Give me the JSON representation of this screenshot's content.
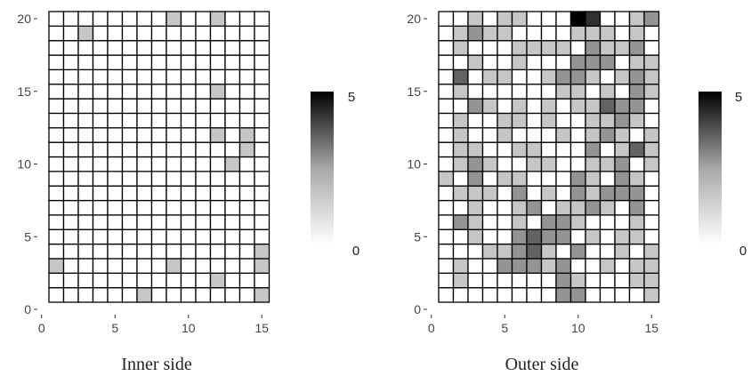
{
  "chart_data": [
    {
      "type": "heatmap",
      "title": "Inner side",
      "x": [
        1,
        2,
        3,
        4,
        5,
        6,
        7,
        8,
        9,
        10,
        11,
        12,
        13,
        14,
        15
      ],
      "y": [
        1,
        2,
        3,
        4,
        5,
        6,
        7,
        8,
        9,
        10,
        11,
        12,
        13,
        14,
        15,
        16,
        17,
        18,
        19,
        20
      ],
      "xlim": [
        0,
        15.5
      ],
      "ylim": [
        0,
        20.5
      ],
      "x_ticks": [
        "0",
        "5",
        "10",
        "15"
      ],
      "y_ticks": [
        "0",
        "5",
        "10",
        "15",
        "20"
      ],
      "values": [
        [
          0,
          0,
          0,
          0,
          0,
          0,
          1,
          0,
          0,
          0,
          0,
          0,
          0,
          0,
          1
        ],
        [
          0,
          0,
          0,
          0,
          0,
          0,
          0,
          0,
          0,
          0,
          0,
          1,
          0,
          0,
          0
        ],
        [
          1,
          0,
          0,
          0,
          0,
          0,
          0,
          0,
          1,
          0,
          0,
          0,
          0,
          0,
          1
        ],
        [
          0,
          0,
          0,
          0,
          0,
          0,
          0,
          0,
          0,
          0,
          0,
          0,
          0,
          0,
          1
        ],
        [
          0,
          0,
          0,
          0,
          0,
          0,
          0,
          0,
          0,
          0,
          0,
          0,
          0,
          0,
          0
        ],
        [
          0,
          0,
          0,
          0,
          0,
          0,
          0,
          0,
          0,
          0,
          0,
          0,
          0,
          0,
          0
        ],
        [
          0,
          0,
          0,
          0,
          0,
          0,
          0,
          0,
          0,
          0,
          0,
          0,
          0,
          0,
          0
        ],
        [
          0,
          0,
          0,
          0,
          0,
          0,
          0,
          0,
          0,
          0,
          0,
          0,
          0,
          0,
          0
        ],
        [
          0,
          0,
          0,
          0,
          0,
          0,
          0,
          0,
          0,
          0,
          0,
          0,
          0,
          0,
          0
        ],
        [
          0,
          0,
          0,
          0,
          0,
          0,
          0,
          0,
          0,
          0,
          0,
          0,
          1,
          0,
          0
        ],
        [
          0,
          0,
          0,
          0,
          0,
          0,
          0,
          0,
          0,
          0,
          0,
          0,
          0,
          1,
          0
        ],
        [
          0,
          0,
          0,
          0,
          0,
          0,
          0,
          0,
          0,
          0,
          0,
          1,
          0,
          1,
          0
        ],
        [
          0,
          0,
          0,
          0,
          0,
          0,
          0,
          0,
          0,
          0,
          0,
          0,
          0,
          0,
          0
        ],
        [
          0,
          0,
          0,
          0,
          0,
          0,
          0,
          0,
          0,
          0,
          0,
          0,
          0,
          0,
          0
        ],
        [
          0,
          0,
          0,
          0,
          0,
          0,
          0,
          0,
          0,
          0,
          0,
          1,
          0,
          0,
          0
        ],
        [
          0,
          0,
          0,
          0,
          0,
          0,
          0,
          0,
          0,
          0,
          0,
          0,
          0,
          0,
          0
        ],
        [
          0,
          0,
          0,
          0,
          0,
          0,
          0,
          0,
          0,
          0,
          0,
          0,
          0,
          0,
          0
        ],
        [
          0,
          0,
          0,
          0,
          0,
          0,
          0,
          0,
          0,
          0,
          0,
          0,
          0,
          0,
          0
        ],
        [
          0,
          0,
          1,
          0,
          0,
          0,
          0,
          0,
          0,
          0,
          0,
          0,
          0,
          0,
          0
        ],
        [
          0,
          0,
          0,
          0,
          0,
          0,
          0,
          0,
          1,
          0,
          0,
          1,
          0,
          0,
          0
        ]
      ],
      "legend": {
        "min_label": "0",
        "max_label": "5",
        "min": 0,
        "max": 5
      }
    },
    {
      "type": "heatmap",
      "title": "Outer side",
      "x": [
        1,
        2,
        3,
        4,
        5,
        6,
        7,
        8,
        9,
        10,
        11,
        12,
        13,
        14,
        15
      ],
      "y": [
        1,
        2,
        3,
        4,
        5,
        6,
        7,
        8,
        9,
        10,
        11,
        12,
        13,
        14,
        15,
        16,
        17,
        18,
        19,
        20
      ],
      "xlim": [
        0,
        15.5
      ],
      "ylim": [
        0,
        20.5
      ],
      "x_ticks": [
        "0",
        "5",
        "10",
        "15"
      ],
      "y_ticks": [
        "0",
        "5",
        "10",
        "15",
        "20"
      ],
      "values": [
        [
          0,
          0,
          0,
          0,
          0,
          0,
          0,
          0,
          2,
          2,
          0,
          0,
          0,
          0,
          1
        ],
        [
          0,
          1,
          0,
          0,
          0,
          0,
          0,
          0,
          2,
          1,
          0,
          0,
          0,
          1,
          1
        ],
        [
          0,
          1,
          0,
          0,
          2,
          2,
          2,
          1,
          2,
          0,
          0,
          1,
          0,
          1,
          1
        ],
        [
          0,
          0,
          0,
          1,
          1,
          2,
          3,
          1,
          0,
          2,
          0,
          0,
          1,
          0,
          1
        ],
        [
          0,
          0,
          1,
          0,
          0,
          2,
          3,
          2,
          2,
          0,
          1,
          0,
          1,
          1,
          0
        ],
        [
          0,
          2,
          1,
          0,
          0,
          1,
          0,
          2,
          2,
          1,
          0,
          0,
          0,
          1,
          0
        ],
        [
          0,
          0,
          1,
          0,
          0,
          1,
          2,
          0,
          1,
          1,
          2,
          1,
          0,
          2,
          0
        ],
        [
          0,
          1,
          1,
          1,
          0,
          2,
          0,
          1,
          0,
          2,
          1,
          2,
          2,
          2,
          0
        ],
        [
          1,
          0,
          2,
          0,
          1,
          1,
          0,
          0,
          0,
          2,
          1,
          0,
          2,
          1,
          0
        ],
        [
          0,
          1,
          2,
          1,
          0,
          0,
          1,
          1,
          0,
          0,
          1,
          1,
          2,
          0,
          1
        ],
        [
          0,
          1,
          1,
          0,
          0,
          1,
          1,
          0,
          0,
          0,
          2,
          0,
          1,
          3,
          1
        ],
        [
          0,
          1,
          0,
          0,
          1,
          0,
          0,
          0,
          1,
          0,
          1,
          2,
          1,
          0,
          1
        ],
        [
          0,
          1,
          0,
          0,
          1,
          1,
          0,
          1,
          0,
          0,
          1,
          1,
          2,
          1,
          0
        ],
        [
          0,
          0,
          2,
          1,
          0,
          1,
          0,
          1,
          0,
          1,
          1,
          3,
          2,
          2,
          0
        ],
        [
          0,
          1,
          0,
          0,
          0,
          0,
          0,
          0,
          1,
          1,
          0,
          1,
          0,
          2,
          1
        ],
        [
          0,
          3,
          0,
          1,
          1,
          0,
          0,
          1,
          2,
          2,
          1,
          0,
          1,
          2,
          1
        ],
        [
          0,
          0,
          1,
          0,
          0,
          1,
          0,
          0,
          0,
          2,
          2,
          2,
          0,
          1,
          1
        ],
        [
          0,
          1,
          0,
          0,
          0,
          1,
          1,
          1,
          1,
          0,
          2,
          1,
          1,
          2,
          0
        ],
        [
          0,
          1,
          2,
          1,
          1,
          0,
          0,
          0,
          0,
          1,
          1,
          1,
          0,
          1,
          0
        ],
        [
          0,
          0,
          1,
          0,
          1,
          1,
          0,
          0,
          0,
          5,
          4,
          0,
          0,
          1,
          2
        ]
      ],
      "legend": {
        "min_label": "0",
        "max_label": "5",
        "min": 0,
        "max": 5
      }
    }
  ]
}
